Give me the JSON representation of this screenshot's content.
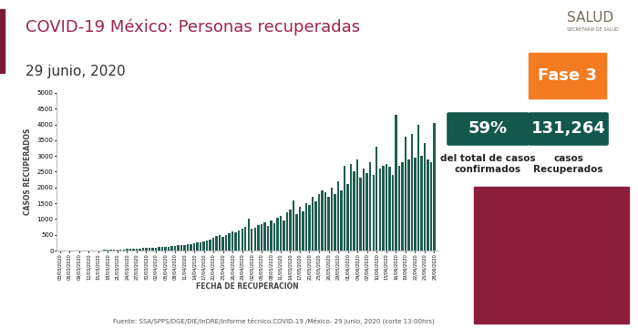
{
  "chart_data": {
    "type": "bar",
    "title": "COVID-19 México: Personas recuperadas",
    "subtitle": "29 junio, 2020",
    "x_label": "FECHA DE RECUPERACIÓN",
    "y_label": "CASOS RECUPERADOS",
    "categories": [
      "03/03/2020",
      null,
      null,
      "06/03/2020",
      null,
      null,
      "09/03/2020",
      null,
      null,
      "12/03/2020",
      null,
      null,
      "15/03/2020",
      null,
      null,
      "18/03/2020",
      null,
      null,
      "21/03/2020",
      null,
      null,
      "24/03/2020",
      null,
      null,
      "27/03/2020",
      null,
      null,
      "30/03/2020",
      null,
      null,
      "02/04/2020",
      null,
      null,
      "05/04/2020",
      null,
      null,
      "08/04/2020",
      null,
      null,
      "11/04/2020",
      null,
      null,
      "14/04/2020",
      null,
      null,
      "17/04/2020",
      null,
      null,
      "20/04/2020",
      null,
      null,
      "23/04/2020",
      null,
      null,
      "26/04/2020",
      null,
      null,
      "29/04/2020",
      null,
      null,
      "02/05/2020",
      null,
      null,
      "05/05/2020",
      null,
      null,
      "08/05/2020",
      null,
      null,
      "11/05/2020",
      null,
      null,
      "14/05/2020",
      null,
      null,
      "17/05/2020",
      null,
      null,
      "20/05/2020",
      null,
      null,
      "23/05/2020",
      null,
      null,
      "26/05/2020",
      null,
      null,
      "29/05/2020",
      null,
      null,
      "01/06/2020",
      null,
      null,
      "04/06/2020",
      null,
      null,
      "07/06/2020",
      null,
      null,
      "10/06/2020",
      null,
      null,
      "13/06/2020",
      null,
      null,
      "16/06/2020",
      null,
      null,
      "19/06/2020",
      null,
      null,
      "22/06/2020",
      null,
      null,
      "25/06/2020",
      null,
      null,
      "28/06/2020"
    ],
    "values": [
      1,
      0,
      1,
      2,
      1,
      3,
      2,
      4,
      3,
      5,
      6,
      8,
      10,
      12,
      15,
      18,
      22,
      25,
      30,
      35,
      40,
      45,
      55,
      60,
      65,
      70,
      80,
      75,
      90,
      95,
      100,
      110,
      105,
      120,
      130,
      140,
      150,
      160,
      170,
      180,
      190,
      210,
      230,
      250,
      270,
      300,
      330,
      360,
      400,
      450,
      500,
      420,
      480,
      550,
      600,
      580,
      650,
      700,
      750,
      1000,
      680,
      720,
      800,
      850,
      900,
      780,
      950,
      880,
      1050,
      1100,
      950,
      1200,
      1300,
      1600,
      1150,
      1400,
      1250,
      1500,
      1450,
      1700,
      1550,
      1800,
      1900,
      1850,
      1700,
      2000,
      1800,
      2200,
      1900,
      2700,
      2100,
      2750,
      2500,
      2900,
      2300,
      2600,
      2450,
      2800,
      2400,
      3300,
      2600,
      2700,
      2750,
      2650,
      2400,
      4300,
      2700,
      2800,
      3600,
      2900,
      3700,
      2950,
      4000,
      3000,
      3400,
      2900,
      2800,
      4050
    ],
    "color": "#1f5c50",
    "ylim": [
      0,
      5000
    ],
    "yticks": [
      0,
      500,
      1000,
      1500,
      2000,
      2500,
      3000,
      3500,
      4000,
      4500,
      5000
    ],
    "grid": false
  },
  "logo": {
    "name": "SALUD",
    "subtitle": "SECRETARÍA DE SALUD"
  },
  "phase": "Fase 3",
  "stats": [
    {
      "value": "59%",
      "caption": "del total de casos\nconfirmados"
    },
    {
      "value": "131,264",
      "caption": "casos\nRecuperados"
    }
  ],
  "source": "Fuente: SSA/SPPS/DGE/DIE/InDRE/Informe técnico.COVID-19 /México- 29 junio, 2020 (corte 13:00hrs)"
}
